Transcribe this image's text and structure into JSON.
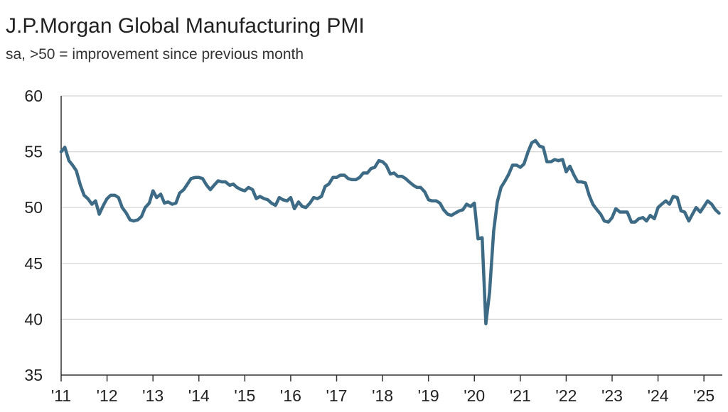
{
  "chart_data": {
    "type": "line",
    "title": "J.P.Morgan Global Manufacturing PMI",
    "subtitle": "sa, >50 = improvement since previous month",
    "xlabel": "",
    "ylabel": "",
    "ylim": [
      35,
      60
    ],
    "yticks": [
      35,
      40,
      45,
      50,
      55,
      60
    ],
    "xlim": [
      2011.0,
      2025.4
    ],
    "xtick_values": [
      2011,
      2012,
      2013,
      2014,
      2015,
      2016,
      2017,
      2018,
      2019,
      2020,
      2021,
      2022,
      2023,
      2024,
      2025
    ],
    "xtick_labels": [
      "'11",
      "'12",
      "'13",
      "'14",
      "'15",
      "'16",
      "'17",
      "'18",
      "'19",
      "'20",
      "'21",
      "'22",
      "'23",
      "'24",
      "'25"
    ],
    "grid": "horizontal",
    "legend": "none",
    "line_color": "#3d6b85",
    "series": [
      {
        "x": [
          2011.0,
          2011.08,
          2011.17,
          2011.25,
          2011.33,
          2011.42,
          2011.5,
          2011.58,
          2011.67,
          2011.75,
          2011.83,
          2011.92,
          2012.0,
          2012.08,
          2012.17,
          2012.25,
          2012.33,
          2012.42,
          2012.5,
          2012.58,
          2012.67,
          2012.75,
          2012.83,
          2012.92,
          2013.0,
          2013.08,
          2013.17,
          2013.25,
          2013.33,
          2013.42,
          2013.5,
          2013.58,
          2013.67,
          2013.75,
          2013.83,
          2013.92,
          2014.0,
          2014.08,
          2014.17,
          2014.25,
          2014.33,
          2014.42,
          2014.5,
          2014.58,
          2014.67,
          2014.75,
          2014.83,
          2014.92,
          2015.0,
          2015.08,
          2015.17,
          2015.25,
          2015.33,
          2015.42,
          2015.5,
          2015.58,
          2015.67,
          2015.75,
          2015.83,
          2015.92,
          2016.0,
          2016.08,
          2016.17,
          2016.25,
          2016.33,
          2016.42,
          2016.5,
          2016.58,
          2016.67,
          2016.75,
          2016.83,
          2016.92,
          2017.0,
          2017.08,
          2017.17,
          2017.25,
          2017.33,
          2017.42,
          2017.5,
          2017.58,
          2017.67,
          2017.75,
          2017.83,
          2017.92,
          2018.0,
          2018.08,
          2018.17,
          2018.25,
          2018.33,
          2018.42,
          2018.5,
          2018.58,
          2018.67,
          2018.75,
          2018.83,
          2018.92,
          2019.0,
          2019.08,
          2019.17,
          2019.25,
          2019.33,
          2019.42,
          2019.5,
          2019.58,
          2019.67,
          2019.75,
          2019.83,
          2019.92,
          2020.0,
          2020.08,
          2020.17,
          2020.25,
          2020.33,
          2020.42,
          2020.5,
          2020.58,
          2020.67,
          2020.75,
          2020.83,
          2020.92,
          2021.0,
          2021.08,
          2021.17,
          2021.25,
          2021.33,
          2021.42,
          2021.5,
          2021.58,
          2021.67,
          2021.75,
          2021.83,
          2021.92,
          2022.0,
          2022.08,
          2022.17,
          2022.25,
          2022.33,
          2022.42,
          2022.5,
          2022.58,
          2022.67,
          2022.75,
          2022.83,
          2022.92,
          2023.0,
          2023.08,
          2023.17,
          2023.25,
          2023.33,
          2023.42,
          2023.5,
          2023.58,
          2023.67,
          2023.75,
          2023.83,
          2023.92,
          2024.0,
          2024.08,
          2024.17,
          2024.25,
          2024.33,
          2024.42,
          2024.5,
          2024.58,
          2024.67,
          2024.75,
          2024.83,
          2024.92,
          2025.0,
          2025.08,
          2025.17,
          2025.25,
          2025.33
        ],
        "values": [
          55.0,
          55.4,
          54.2,
          53.8,
          53.3,
          52.0,
          51.1,
          50.8,
          50.3,
          50.6,
          49.4,
          50.2,
          50.8,
          51.1,
          51.1,
          50.9,
          50.0,
          49.5,
          48.9,
          48.8,
          48.9,
          49.2,
          50.0,
          50.4,
          51.5,
          50.9,
          51.2,
          50.4,
          50.5,
          50.3,
          50.4,
          51.3,
          51.6,
          52.1,
          52.6,
          52.7,
          52.7,
          52.6,
          52.0,
          51.6,
          52.0,
          52.4,
          52.3,
          52.3,
          52.0,
          52.1,
          51.8,
          51.6,
          51.5,
          51.8,
          51.6,
          50.8,
          51.0,
          50.8,
          50.7,
          50.4,
          50.2,
          50.9,
          50.7,
          50.6,
          50.9,
          49.9,
          50.5,
          50.1,
          50.0,
          50.4,
          50.9,
          50.8,
          51.0,
          51.9,
          52.1,
          52.7,
          52.7,
          52.9,
          52.9,
          52.6,
          52.5,
          52.5,
          52.7,
          53.1,
          53.1,
          53.5,
          53.6,
          54.2,
          54.1,
          53.8,
          53.0,
          53.1,
          52.8,
          52.8,
          52.6,
          52.3,
          52.0,
          51.8,
          51.8,
          51.4,
          50.7,
          50.6,
          50.6,
          50.4,
          49.8,
          49.4,
          49.3,
          49.5,
          49.7,
          49.8,
          50.3,
          50.1,
          50.4,
          47.2,
          47.3,
          39.6,
          42.4,
          47.9,
          50.5,
          51.8,
          52.4,
          53.0,
          53.8,
          53.8,
          53.6,
          53.9,
          55.0,
          55.8,
          56.0,
          55.5,
          55.4,
          54.1,
          54.1,
          54.3,
          54.2,
          54.3,
          53.2,
          53.7,
          52.9,
          52.3,
          52.3,
          52.2,
          51.1,
          50.3,
          49.8,
          49.4,
          48.8,
          48.7,
          49.1,
          49.9,
          49.6,
          49.6,
          49.6,
          48.7,
          48.7,
          49.0,
          49.1,
          48.8,
          49.3,
          49.0,
          50.0,
          50.3,
          50.6,
          50.3,
          51.0,
          50.9,
          49.7,
          49.6,
          48.8,
          49.4,
          50.0,
          49.6,
          50.1,
          50.6,
          50.3,
          49.8,
          49.5
        ]
      }
    ]
  }
}
